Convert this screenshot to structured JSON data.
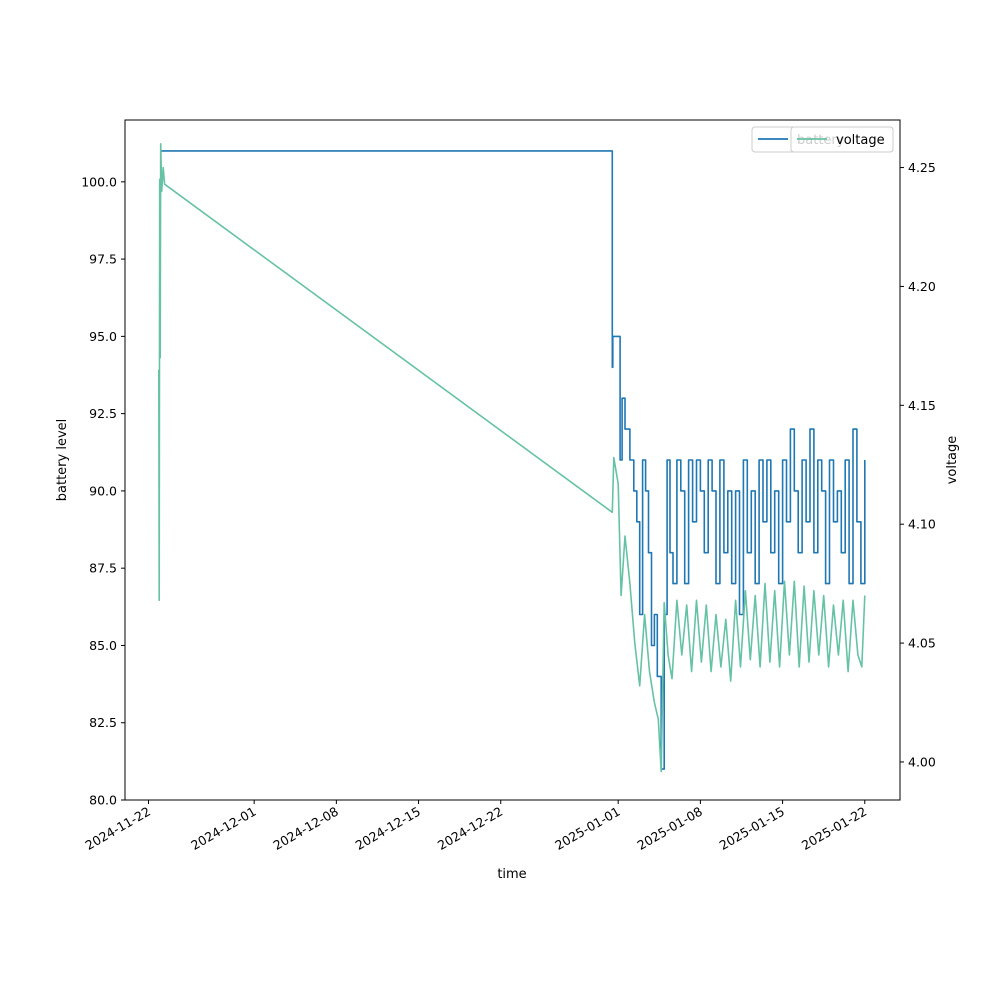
{
  "chart_data": {
    "type": "line",
    "xlabel": "time",
    "ylabel": "battery level",
    "y2label": "voltage",
    "xlim": [
      "2024-11-20T00:00",
      "2025-01-25T00:00"
    ],
    "ylim": [
      80,
      102
    ],
    "y2lim": [
      3.984,
      4.27
    ],
    "xticks": [
      "2024-11-22",
      "2024-12-01",
      "2024-12-08",
      "2024-12-15",
      "2024-12-22",
      "2025-01-01",
      "2025-01-08",
      "2025-01-15",
      "2025-01-22"
    ],
    "yticks": [
      "80.0",
      "82.5",
      "85.0",
      "87.5",
      "90.0",
      "92.5",
      "95.0",
      "97.5",
      "100.0"
    ],
    "y2ticks": [
      "4.00",
      "4.05",
      "4.10",
      "4.15",
      "4.20",
      "4.25"
    ],
    "grid": false,
    "colors": {
      "battery": "#1f77b4",
      "voltage": "#66c2a5"
    },
    "legends": [
      {
        "placement": "top-right",
        "entries": [
          "battery"
        ]
      },
      {
        "placement": "top-right",
        "entries": [
          "voltage"
        ]
      }
    ],
    "series": [
      {
        "axis": "left",
        "values": [
          [
            "2024-11-23T00:00",
            101.0
          ],
          [
            "2024-11-23T12:00",
            101.0
          ],
          [
            "2024-12-31T12:00",
            94.0
          ],
          [
            "2024-12-31T13:00",
            95.0
          ],
          [
            "2025-01-01T01:00",
            95.0
          ],
          [
            "2025-01-01T04:00",
            91.0
          ],
          [
            "2025-01-01T08:00",
            93.0
          ],
          [
            "2025-01-01T14:00",
            92.0
          ],
          [
            "2025-01-02T00:00",
            91.0
          ],
          [
            "2025-01-02T08:00",
            90.0
          ],
          [
            "2025-01-02T14:00",
            89.0
          ],
          [
            "2025-01-02T20:00",
            86.0
          ],
          [
            "2025-01-03T02:00",
            91.0
          ],
          [
            "2025-01-03T08:00",
            90.0
          ],
          [
            "2025-01-03T14:00",
            88.0
          ],
          [
            "2025-01-03T20:00",
            85.0
          ],
          [
            "2025-01-04T02:00",
            86.0
          ],
          [
            "2025-01-04T08:00",
            84.0
          ],
          [
            "2025-01-04T16:00",
            81.0
          ],
          [
            "2025-01-04T22:00",
            86.0
          ],
          [
            "2025-01-05T04:00",
            91.0
          ],
          [
            "2025-01-05T10:00",
            88.0
          ],
          [
            "2025-01-05T16:00",
            87.0
          ],
          [
            "2025-01-06T00:00",
            91.0
          ],
          [
            "2025-01-06T08:00",
            90.0
          ],
          [
            "2025-01-06T16:00",
            87.0
          ],
          [
            "2025-01-07T00:00",
            91.0
          ],
          [
            "2025-01-07T08:00",
            89.0
          ],
          [
            "2025-01-07T16:00",
            91.0
          ],
          [
            "2025-01-08T00:00",
            90.0
          ],
          [
            "2025-01-08T08:00",
            88.0
          ],
          [
            "2025-01-08T16:00",
            91.0
          ],
          [
            "2025-01-09T00:00",
            90.0
          ],
          [
            "2025-01-09T08:00",
            87.0
          ],
          [
            "2025-01-09T16:00",
            91.0
          ],
          [
            "2025-01-10T00:00",
            88.0
          ],
          [
            "2025-01-10T08:00",
            90.0
          ],
          [
            "2025-01-10T16:00",
            87.0
          ],
          [
            "2025-01-11T00:00",
            90.0
          ],
          [
            "2025-01-11T08:00",
            86.0
          ],
          [
            "2025-01-11T16:00",
            91.0
          ],
          [
            "2025-01-12T00:00",
            88.0
          ],
          [
            "2025-01-12T08:00",
            90.0
          ],
          [
            "2025-01-12T16:00",
            87.0
          ],
          [
            "2025-01-13T00:00",
            91.0
          ],
          [
            "2025-01-13T08:00",
            89.0
          ],
          [
            "2025-01-13T16:00",
            91.0
          ],
          [
            "2025-01-14T00:00",
            88.0
          ],
          [
            "2025-01-14T08:00",
            90.0
          ],
          [
            "2025-01-14T16:00",
            87.0
          ],
          [
            "2025-01-15T00:00",
            91.0
          ],
          [
            "2025-01-15T08:00",
            89.0
          ],
          [
            "2025-01-15T16:00",
            92.0
          ],
          [
            "2025-01-16T00:00",
            90.0
          ],
          [
            "2025-01-16T08:00",
            88.0
          ],
          [
            "2025-01-16T16:00",
            91.0
          ],
          [
            "2025-01-17T00:00",
            89.0
          ],
          [
            "2025-01-17T08:00",
            92.0
          ],
          [
            "2025-01-17T16:00",
            88.0
          ],
          [
            "2025-01-18T00:00",
            91.0
          ],
          [
            "2025-01-18T08:00",
            90.0
          ],
          [
            "2025-01-18T16:00",
            87.0
          ],
          [
            "2025-01-19T00:00",
            91.0
          ],
          [
            "2025-01-19T08:00",
            89.0
          ],
          [
            "2025-01-19T16:00",
            90.0
          ],
          [
            "2025-01-20T00:00",
            88.0
          ],
          [
            "2025-01-20T08:00",
            91.0
          ],
          [
            "2025-01-20T16:00",
            87.0
          ],
          [
            "2025-01-21T00:00",
            92.0
          ],
          [
            "2025-01-21T08:00",
            89.0
          ],
          [
            "2025-01-21T16:00",
            87.0
          ],
          [
            "2025-01-22T00:00",
            91.0
          ]
        ]
      },
      {
        "axis": "right",
        "values": [
          [
            "2024-11-22T21:00",
            4.165
          ],
          [
            "2024-11-22T22:00",
            4.068
          ],
          [
            "2024-11-22T23:00",
            4.245
          ],
          [
            "2024-11-23T00:00",
            4.17
          ],
          [
            "2024-11-23T01:00",
            4.26
          ],
          [
            "2024-11-23T03:00",
            4.24
          ],
          [
            "2024-11-23T06:00",
            4.25
          ],
          [
            "2024-11-23T09:00",
            4.243
          ],
          [
            "2024-12-31T12:00",
            4.105
          ],
          [
            "2024-12-31T15:00",
            4.128
          ],
          [
            "2025-01-01T00:00",
            4.117
          ],
          [
            "2025-01-01T06:00",
            4.07
          ],
          [
            "2025-01-01T14:00",
            4.095
          ],
          [
            "2025-01-02T00:00",
            4.075
          ],
          [
            "2025-01-02T10:00",
            4.05
          ],
          [
            "2025-01-02T20:00",
            4.032
          ],
          [
            "2025-01-03T06:00",
            4.062
          ],
          [
            "2025-01-03T16:00",
            4.038
          ],
          [
            "2025-01-04T02:00",
            4.025
          ],
          [
            "2025-01-04T10:00",
            4.018
          ],
          [
            "2025-01-04T16:00",
            3.996
          ],
          [
            "2025-01-04T22:00",
            4.067
          ],
          [
            "2025-01-05T06:00",
            4.045
          ],
          [
            "2025-01-05T14:00",
            4.035
          ],
          [
            "2025-01-06T00:00",
            4.068
          ],
          [
            "2025-01-06T10:00",
            4.045
          ],
          [
            "2025-01-06T20:00",
            4.066
          ],
          [
            "2025-01-07T06:00",
            4.038
          ],
          [
            "2025-01-07T16:00",
            4.068
          ],
          [
            "2025-01-08T02:00",
            4.042
          ],
          [
            "2025-01-08T12:00",
            4.066
          ],
          [
            "2025-01-08T22:00",
            4.038
          ],
          [
            "2025-01-09T08:00",
            4.062
          ],
          [
            "2025-01-09T18:00",
            4.04
          ],
          [
            "2025-01-10T04:00",
            4.06
          ],
          [
            "2025-01-10T14:00",
            4.034
          ],
          [
            "2025-01-11T00:00",
            4.068
          ],
          [
            "2025-01-11T10:00",
            4.04
          ],
          [
            "2025-01-11T20:00",
            4.072
          ],
          [
            "2025-01-12T06:00",
            4.043
          ],
          [
            "2025-01-12T16:00",
            4.07
          ],
          [
            "2025-01-13T02:00",
            4.04
          ],
          [
            "2025-01-13T12:00",
            4.075
          ],
          [
            "2025-01-13T22:00",
            4.042
          ],
          [
            "2025-01-14T08:00",
            4.072
          ],
          [
            "2025-01-14T18:00",
            4.04
          ],
          [
            "2025-01-15T04:00",
            4.076
          ],
          [
            "2025-01-15T14:00",
            4.045
          ],
          [
            "2025-01-16T00:00",
            4.076
          ],
          [
            "2025-01-16T10:00",
            4.04
          ],
          [
            "2025-01-16T20:00",
            4.074
          ],
          [
            "2025-01-17T06:00",
            4.042
          ],
          [
            "2025-01-17T16:00",
            4.072
          ],
          [
            "2025-01-18T02:00",
            4.045
          ],
          [
            "2025-01-18T12:00",
            4.07
          ],
          [
            "2025-01-18T22:00",
            4.04
          ],
          [
            "2025-01-19T08:00",
            4.066
          ],
          [
            "2025-01-19T18:00",
            4.045
          ],
          [
            "2025-01-20T04:00",
            4.068
          ],
          [
            "2025-01-20T14:00",
            4.038
          ],
          [
            "2025-01-21T00:00",
            4.068
          ],
          [
            "2025-01-21T10:00",
            4.045
          ],
          [
            "2025-01-21T18:00",
            4.04
          ],
          [
            "2025-01-22T00:00",
            4.07
          ]
        ]
      }
    ]
  }
}
